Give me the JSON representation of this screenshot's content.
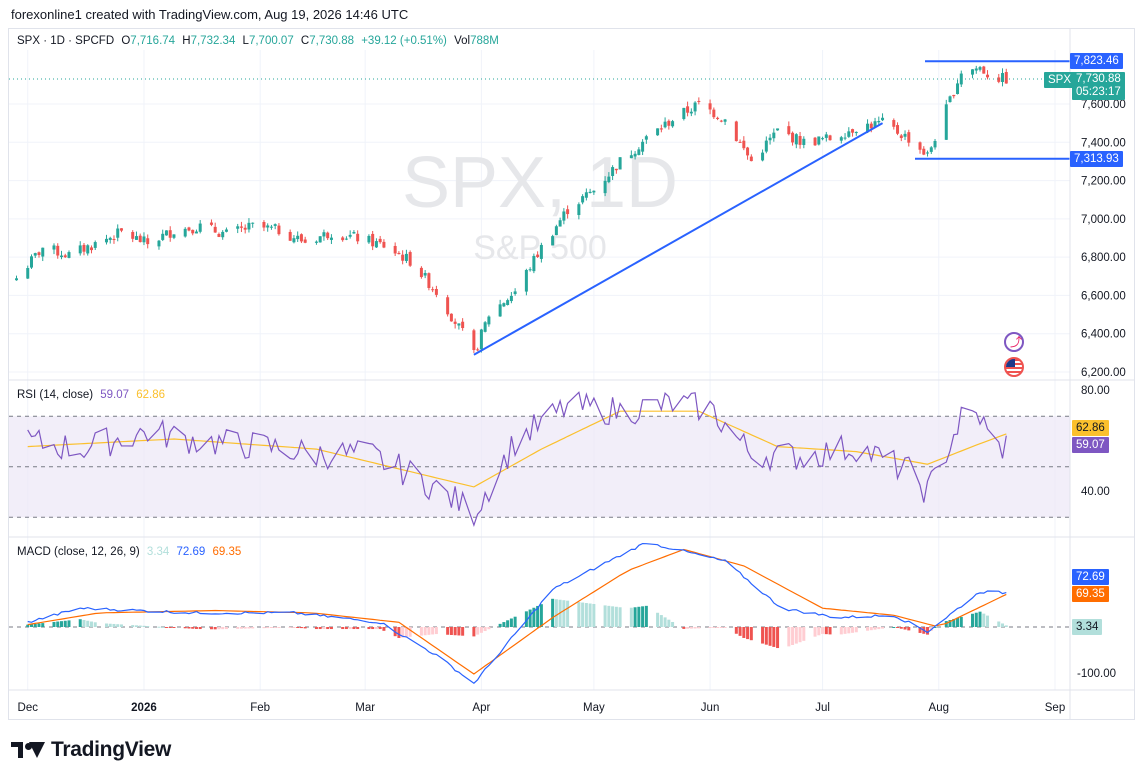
{
  "header": {
    "attribution": "forexonline1 created with TradingView.com, Aug 19, 2026 14:46 UTC"
  },
  "legend": {
    "symbol": "SPX · 1D · SPCFD",
    "o_label": "O",
    "o_value": "7,716.74",
    "h_label": "H",
    "h_value": "7,732.34",
    "l_label": "L",
    "l_value": "7,700.07",
    "c_label": "C",
    "c_value": "7,730.88",
    "change": "+39.12 (+0.51%)",
    "vol_label": "Vol",
    "vol_value": "788M"
  },
  "watermark": {
    "title": "SPX, 1D",
    "subtitle": "S&P 500"
  },
  "price_labels": {
    "ticker_badge": "SPX",
    "last_price": "7,730.88",
    "countdown": "05:23:17",
    "upper_level": "7,823.46",
    "lower_level": "7,313.93"
  },
  "rsi": {
    "title": "RSI (14, close)",
    "value": "59.07",
    "ma_value": "62.86",
    "axis": [
      "80.00",
      "40.00"
    ]
  },
  "macd": {
    "title": "MACD (close, 12, 26, 9)",
    "hist_value": "3.34",
    "macd_value": "72.69",
    "signal_value": "69.35",
    "axis": [
      "-100.00"
    ]
  },
  "colors": {
    "up": "#26a69a",
    "down": "#ef5350",
    "rsi_line": "#7e57c2",
    "rsi_ma": "#fbc02d",
    "macd_line": "#2962ff",
    "signal_line": "#ff6d00",
    "level_line": "#2962ff"
  },
  "branding": {
    "logo_text": "TradingView",
    "logo_icon": "tradingview-logo-icon"
  },
  "icons": [
    "lightning-icon",
    "us-flag-icon"
  ],
  "chart_data": {
    "type": "candlestick",
    "price_axis_ticks": [
      "7,600.00",
      "7,400.00",
      "7,200.00",
      "7,000.00",
      "6,800.00",
      "6,600.00",
      "6,400.00",
      "6,200.00"
    ],
    "x_tick_labels": [
      "Dec",
      "2026",
      "Feb",
      "Mar",
      "Apr",
      "May",
      "Jun",
      "Jul",
      "Aug",
      "Sep"
    ],
    "ylim": [
      6180,
      7890
    ],
    "horizontal_levels": [
      7823.46,
      7313.93
    ],
    "trendline": {
      "from": [
        "2026-03-30",
        6290
      ],
      "to": [
        "2026-07-17",
        7500
      ]
    },
    "close_path": [
      [
        "2025-11-28",
        6690
      ],
      [
        "2025-12-05",
        6850
      ],
      [
        "2025-12-12",
        6810
      ],
      [
        "2025-12-19",
        6870
      ],
      [
        "2025-12-26",
        6930
      ],
      [
        "2026-01-02",
        6870
      ],
      [
        "2026-01-09",
        6940
      ],
      [
        "2026-01-16",
        6960
      ],
      [
        "2026-01-23",
        6920
      ],
      [
        "2026-01-30",
        6960
      ],
      [
        "2026-02-06",
        6940
      ],
      [
        "2026-02-13",
        6880
      ],
      [
        "2026-02-20",
        6930
      ],
      [
        "2026-02-27",
        6900
      ],
      [
        "2026-03-06",
        6860
      ],
      [
        "2026-03-13",
        6780
      ],
      [
        "2026-03-20",
        6620
      ],
      [
        "2026-03-27",
        6400
      ],
      [
        "2026-03-30",
        6290
      ],
      [
        "2026-04-03",
        6500
      ],
      [
        "2026-04-10",
        6620
      ],
      [
        "2026-04-17",
        6850
      ],
      [
        "2026-04-24",
        7050
      ],
      [
        "2026-05-01",
        7150
      ],
      [
        "2026-05-08",
        7300
      ],
      [
        "2026-05-15",
        7420
      ],
      [
        "2026-05-22",
        7520
      ],
      [
        "2026-05-29",
        7600
      ],
      [
        "2026-06-05",
        7520
      ],
      [
        "2026-06-12",
        7300
      ],
      [
        "2026-06-19",
        7460
      ],
      [
        "2026-06-26",
        7400
      ],
      [
        "2026-07-03",
        7420
      ],
      [
        "2026-07-10",
        7480
      ],
      [
        "2026-07-17",
        7500
      ],
      [
        "2026-07-24",
        7420
      ],
      [
        "2026-07-29",
        7330
      ],
      [
        "2026-08-04",
        7620
      ],
      [
        "2026-08-07",
        7770
      ],
      [
        "2026-08-12",
        7790
      ],
      [
        "2026-08-15",
        7740
      ],
      [
        "2026-08-19",
        7730
      ]
    ],
    "rsi_series": [
      [
        "2025-12-01",
        60
      ],
      [
        "2025-12-15",
        57
      ],
      [
        "2026-01-02",
        64
      ],
      [
        "2026-01-16",
        60
      ],
      [
        "2026-02-02",
        58
      ],
      [
        "2026-02-16",
        55
      ],
      [
        "2026-03-02",
        55
      ],
      [
        "2026-03-16",
        45
      ],
      [
        "2026-03-30",
        32
      ],
      [
        "2026-04-10",
        60
      ],
      [
        "2026-04-24",
        74
      ],
      [
        "2026-05-08",
        72
      ],
      [
        "2026-05-22",
        75
      ],
      [
        "2026-06-01",
        73
      ],
      [
        "2026-06-12",
        55
      ],
      [
        "2026-06-26",
        54
      ],
      [
        "2026-07-10",
        58
      ],
      [
        "2026-07-24",
        48
      ],
      [
        "2026-07-29",
        40
      ],
      [
        "2026-08-07",
        69
      ],
      [
        "2026-08-12",
        70
      ],
      [
        "2026-08-16",
        56
      ],
      [
        "2026-08-19",
        59
      ]
    ],
    "rsi_ma_series": [
      [
        "2025-12-01",
        58
      ],
      [
        "2026-01-09",
        61
      ],
      [
        "2026-02-16",
        57
      ],
      [
        "2026-03-16",
        47
      ],
      [
        "2026-03-30",
        42
      ],
      [
        "2026-04-17",
        57
      ],
      [
        "2026-05-08",
        72
      ],
      [
        "2026-05-29",
        72
      ],
      [
        "2026-06-19",
        58
      ],
      [
        "2026-07-10",
        56
      ],
      [
        "2026-07-29",
        51
      ],
      [
        "2026-08-10",
        58
      ],
      [
        "2026-08-19",
        63
      ]
    ],
    "rsi_ylim": [
      25,
      85
    ],
    "macd_series": [
      [
        "2025-12-01",
        10
      ],
      [
        "2025-12-15",
        40
      ],
      [
        "2026-01-15",
        30
      ],
      [
        "2026-02-10",
        30
      ],
      [
        "2026-03-05",
        10
      ],
      [
        "2026-03-20",
        -60
      ],
      [
        "2026-03-30",
        -120
      ],
      [
        "2026-04-20",
        80
      ],
      [
        "2026-05-15",
        180
      ],
      [
        "2026-06-05",
        140
      ],
      [
        "2026-06-20",
        40
      ],
      [
        "2026-07-05",
        20
      ],
      [
        "2026-07-20",
        25
      ],
      [
        "2026-07-29",
        -10
      ],
      [
        "2026-08-12",
        75
      ],
      [
        "2026-08-19",
        72.69
      ]
    ],
    "signal_series": [
      [
        "2025-12-01",
        5
      ],
      [
        "2025-12-20",
        30
      ],
      [
        "2026-01-20",
        35
      ],
      [
        "2026-02-15",
        30
      ],
      [
        "2026-03-10",
        10
      ],
      [
        "2026-03-30",
        -100
      ],
      [
        "2026-04-20",
        20
      ],
      [
        "2026-05-10",
        120
      ],
      [
        "2026-05-25",
        165
      ],
      [
        "2026-06-10",
        130
      ],
      [
        "2026-07-01",
        40
      ],
      [
        "2026-07-20",
        25
      ],
      [
        "2026-08-01",
        0
      ],
      [
        "2026-08-19",
        69.35
      ]
    ],
    "macd_ylim": [
      -130,
      200
    ]
  }
}
